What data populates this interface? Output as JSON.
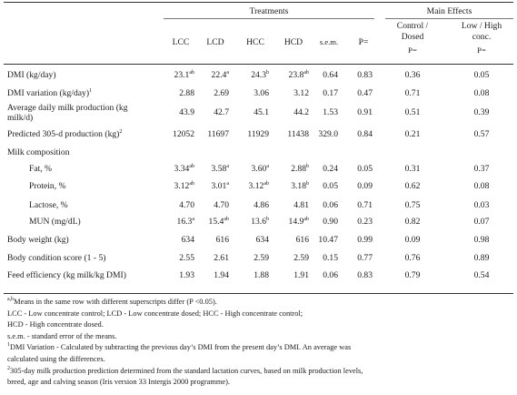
{
  "header": {
    "treatments": "Treatments",
    "main_effects": "Main Effects",
    "columns": [
      "LCC",
      "LCD",
      "HCC",
      "HCD",
      "s.e.m.",
      "P="
    ],
    "me_col1": [
      "Control /",
      "Dosed",
      "P="
    ],
    "me_col2": [
      "Low / High",
      "conc.",
      "P="
    ]
  },
  "rows": [
    {
      "label": [
        "DMI (kg/day)"
      ],
      "sup": "",
      "indent": false,
      "cells": [
        [
          "23.1",
          "ab"
        ],
        [
          "22.4",
          "a"
        ],
        [
          "24.3",
          "b"
        ],
        [
          "23.8",
          "ab"
        ],
        [
          "0.64",
          ""
        ],
        [
          "0.83",
          ""
        ]
      ],
      "me": [
        "0.36",
        "0.05"
      ]
    },
    {
      "label": [
        "DMI variation (kg/day)"
      ],
      "sup": "1",
      "indent": false,
      "cells": [
        [
          "2.88",
          ""
        ],
        [
          "2.69",
          ""
        ],
        [
          "3.06",
          ""
        ],
        [
          "3.12",
          ""
        ],
        [
          "0.17",
          ""
        ],
        [
          "0.47",
          ""
        ]
      ],
      "me": [
        "0.71",
        "0.08"
      ]
    },
    {
      "label": [
        "Average daily milk production (kg",
        "milk/d)"
      ],
      "sup": "",
      "indent": false,
      "cells": [
        [
          "43.9",
          ""
        ],
        [
          "42.7",
          ""
        ],
        [
          "45.1",
          ""
        ],
        [
          "44.2",
          ""
        ],
        [
          "1.53",
          ""
        ],
        [
          "0.91",
          ""
        ]
      ],
      "me": [
        "0.51",
        "0.39"
      ]
    },
    {
      "label": [
        "Predicted 305-d production  (kg)"
      ],
      "sup": "2",
      "indent": false,
      "cells": [
        [
          "12052",
          ""
        ],
        [
          "11697",
          ""
        ],
        [
          "11929",
          ""
        ],
        [
          "11438",
          ""
        ],
        [
          "329.0",
          ""
        ],
        [
          "0.84",
          ""
        ]
      ],
      "me": [
        "0.21",
        "0.57"
      ]
    },
    {
      "label": [
        "Milk composition"
      ],
      "sup": "",
      "indent": false,
      "cells": [],
      "me": []
    },
    {
      "label": [
        "Fat, %"
      ],
      "sup": "",
      "indent": true,
      "cells": [
        [
          "3.34",
          "ab"
        ],
        [
          "3.58",
          "a"
        ],
        [
          "3.60",
          "a"
        ],
        [
          "2.88",
          "b"
        ],
        [
          "0.24",
          ""
        ],
        [
          "0.05",
          ""
        ]
      ],
      "me": [
        "0.31",
        "0.37"
      ]
    },
    {
      "label": [
        "Protein, %"
      ],
      "sup": "",
      "indent": true,
      "cells": [
        [
          "3.12",
          "ab"
        ],
        [
          "3.01",
          "a"
        ],
        [
          "3.12",
          "ab"
        ],
        [
          "3.18",
          "b"
        ],
        [
          "0.05",
          ""
        ],
        [
          "0.09",
          ""
        ]
      ],
      "me": [
        "0.62",
        "0.08"
      ]
    },
    {
      "label": [
        "Lactose, %"
      ],
      "sup": "",
      "indent": true,
      "cells": [
        [
          "4.70",
          ""
        ],
        [
          "4.70",
          ""
        ],
        [
          "4.86",
          ""
        ],
        [
          "4.81",
          ""
        ],
        [
          "0.06",
          ""
        ],
        [
          "0.71",
          ""
        ]
      ],
      "me": [
        "0.75",
        "0.03"
      ]
    },
    {
      "label": [
        "MUN (mg/dL)"
      ],
      "sup": "",
      "indent": true,
      "cells": [
        [
          "16.3",
          "a"
        ],
        [
          "15.4",
          "ab"
        ],
        [
          "13.6",
          "b"
        ],
        [
          "14.9",
          "ab"
        ],
        [
          "0.90",
          ""
        ],
        [
          "0.23",
          ""
        ]
      ],
      "me": [
        "0.82",
        "0.07"
      ]
    },
    {
      "label": [
        "Body weight (kg)"
      ],
      "sup": "",
      "indent": false,
      "cells": [
        [
          "634",
          ""
        ],
        [
          "616",
          ""
        ],
        [
          "634",
          ""
        ],
        [
          "616",
          ""
        ],
        [
          "10.47",
          ""
        ],
        [
          "0.99",
          ""
        ]
      ],
      "me": [
        "0.09",
        "0.98"
      ]
    },
    {
      "label": [
        "Body condition score (1 - 5)"
      ],
      "sup": "",
      "indent": false,
      "cells": [
        [
          "2.55",
          ""
        ],
        [
          "2.61",
          ""
        ],
        [
          "2.59",
          ""
        ],
        [
          "2.59",
          ""
        ],
        [
          "0.15",
          ""
        ],
        [
          "0.77",
          ""
        ]
      ],
      "me": [
        "0.76",
        "0.89"
      ]
    },
    {
      "label": [
        "Feed efficiency (kg milk/kg DMI)"
      ],
      "sup": "",
      "indent": false,
      "cells": [
        [
          "1.93",
          ""
        ],
        [
          "1.94",
          ""
        ],
        [
          "1.88",
          ""
        ],
        [
          "1.91",
          ""
        ],
        [
          "0.06",
          ""
        ],
        [
          "0.83",
          ""
        ]
      ],
      "me": [
        "0.79",
        "0.54"
      ]
    }
  ],
  "footnotes": [
    {
      "sup": "a,b",
      "text": "Means in the same row with different superscripts differ (P <0.05)."
    },
    {
      "sup": "",
      "text": "LCC - Low concentrate control; LCD - Low concentrate dosed; HCC - High concentrate control;"
    },
    {
      "sup": "",
      "text": "HCD - High concentrate dosed."
    },
    {
      "sup": "",
      "text": "s.e.m. - standard error of the means."
    },
    {
      "sup": "1",
      "text": "DMI Variation - Calculated by subtracting the previous day’s DMI from the present day’s DMI. An average was"
    },
    {
      "sup": "",
      "text": "calculated using the differences."
    },
    {
      "sup": "2",
      "text": "305-day milk production prediction determined from the standard lactation curves, based on milk production levels,"
    },
    {
      "sup": "",
      "text": "breed, age and calving season (Iris version 33 Intergis 2000 programme)."
    }
  ]
}
